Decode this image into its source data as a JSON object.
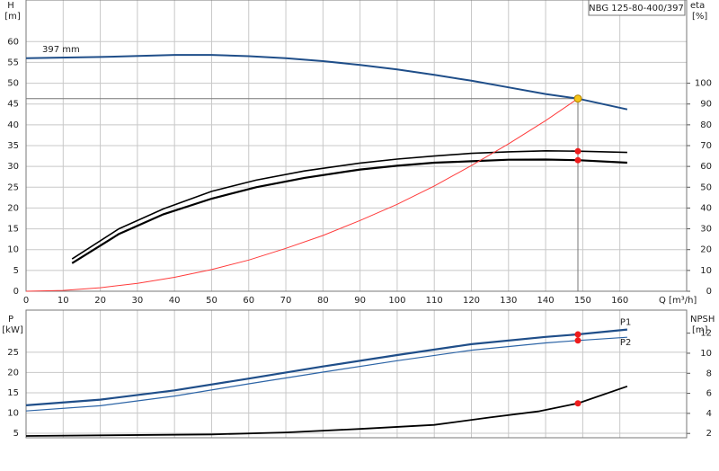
{
  "chart_data": [
    {
      "type": "line",
      "title": "NBG 125-80-400/397",
      "y_label": "H",
      "y_unit": "[m]",
      "y2_label": "eta",
      "y2_unit": "[%]",
      "x_label": "Q [m³/h]",
      "xlim": [
        0,
        178
      ],
      "xticks": [
        0,
        10,
        20,
        30,
        40,
        50,
        60,
        70,
        80,
        90,
        100,
        110,
        120,
        130,
        140,
        150,
        160
      ],
      "ylim": [
        0,
        70
      ],
      "yticks": [
        0,
        5,
        10,
        15,
        20,
        25,
        30,
        35,
        40,
        45,
        50,
        55,
        60
      ],
      "y2lim": [
        0,
        140
      ],
      "y2ticks": [
        0,
        10,
        20,
        30,
        40,
        50,
        60,
        70,
        80,
        90,
        100
      ],
      "grid": true,
      "duty_point": {
        "x": 148.7,
        "y": 46.3,
        "color": "#f5c518"
      },
      "series": [
        {
          "name": "397 mm",
          "label_at": "start",
          "color": "#1f4e89",
          "width": 2,
          "x": [
            0,
            20,
            40,
            50,
            60,
            70,
            80,
            90,
            100,
            110,
            120,
            130,
            140,
            148.7,
            162
          ],
          "values": [
            56,
            56.3,
            56.8,
            56.8,
            56.5,
            56,
            55.3,
            54.4,
            53.3,
            52,
            50.6,
            49,
            47.4,
            46.3,
            43.7
          ]
        },
        {
          "axis": "y2",
          "color": "#000000",
          "width": 1.6,
          "dot_color": "#ee1c1c",
          "x": [
            12.4,
            25,
            37,
            50,
            62,
            75,
            90,
            100,
            110,
            120,
            130,
            140,
            148.7,
            162
          ],
          "values": [
            15.5,
            30,
            39.6,
            48,
            53.4,
            57.8,
            61.6,
            63.5,
            65,
            66.3,
            67,
            67.5,
            67.3,
            66.7
          ]
        },
        {
          "axis": "y2",
          "color": "#000000",
          "width": 2.2,
          "dot_color": "#ee1c1c",
          "x": [
            12.4,
            25,
            37,
            50,
            62,
            75,
            90,
            100,
            110,
            120,
            130,
            140,
            148.7,
            162
          ],
          "values": [
            13.5,
            27.5,
            37,
            44.5,
            50,
            54.5,
            58.5,
            60.3,
            61.8,
            62.5,
            63.2,
            63.3,
            63,
            61.8
          ]
        },
        {
          "color": "#ff3b3b",
          "width": 1,
          "x": [
            0,
            10,
            20,
            30,
            40,
            50,
            60,
            70,
            80,
            90,
            100,
            110,
            120,
            130,
            140,
            148.7
          ],
          "values": [
            0,
            0.2,
            0.84,
            1.9,
            3.35,
            5.2,
            7.5,
            10.3,
            13.4,
            17,
            20.9,
            25.3,
            30.2,
            35.4,
            41,
            46.3
          ]
        }
      ]
    },
    {
      "type": "line",
      "y_label": "P",
      "y_unit": "[kW]",
      "y2_label": "NPSH",
      "y2_unit": "[m]",
      "xlim": [
        0,
        178
      ],
      "xticks": [
        0,
        10,
        20,
        30,
        40,
        50,
        60,
        70,
        80,
        90,
        100,
        110,
        120,
        130,
        140,
        150,
        160
      ],
      "ylim": [
        3.9,
        35.4
      ],
      "yticks": [
        5,
        10,
        15,
        20,
        25
      ],
      "y2lim": [
        1.57,
        14.3
      ],
      "y2ticks": [
        2,
        4,
        6,
        8,
        10,
        12
      ],
      "grid": true,
      "series": [
        {
          "name": "P1",
          "label_at": "end",
          "color": "#1f4e89",
          "width": 2.2,
          "dot_color": "#ee1c1c",
          "x": [
            0,
            20,
            40,
            60,
            80,
            100,
            120,
            140,
            148.7,
            162
          ],
          "values": [
            11.9,
            13.3,
            15.6,
            18.5,
            21.5,
            24.3,
            27,
            28.8,
            29.4,
            30.6
          ]
        },
        {
          "name": "P2",
          "label_at": "end",
          "color": "#2c64a6",
          "width": 1.2,
          "dot_color": "#ee1c1c",
          "x": [
            0,
            20,
            40,
            60,
            80,
            100,
            120,
            140,
            148.7,
            162
          ],
          "values": [
            10.5,
            11.8,
            14.2,
            17.2,
            20.1,
            22.9,
            25.5,
            27.3,
            27.9,
            28.7
          ]
        },
        {
          "axis": "y2",
          "color": "#000000",
          "width": 1.8,
          "dot_color": "#ee1c1c",
          "x": [
            0,
            50,
            70,
            90,
            110,
            125,
            138,
            148.7,
            162
          ],
          "values": [
            1.75,
            1.9,
            2.1,
            2.45,
            2.85,
            3.6,
            4.2,
            5.0,
            6.7
          ]
        }
      ]
    }
  ]
}
